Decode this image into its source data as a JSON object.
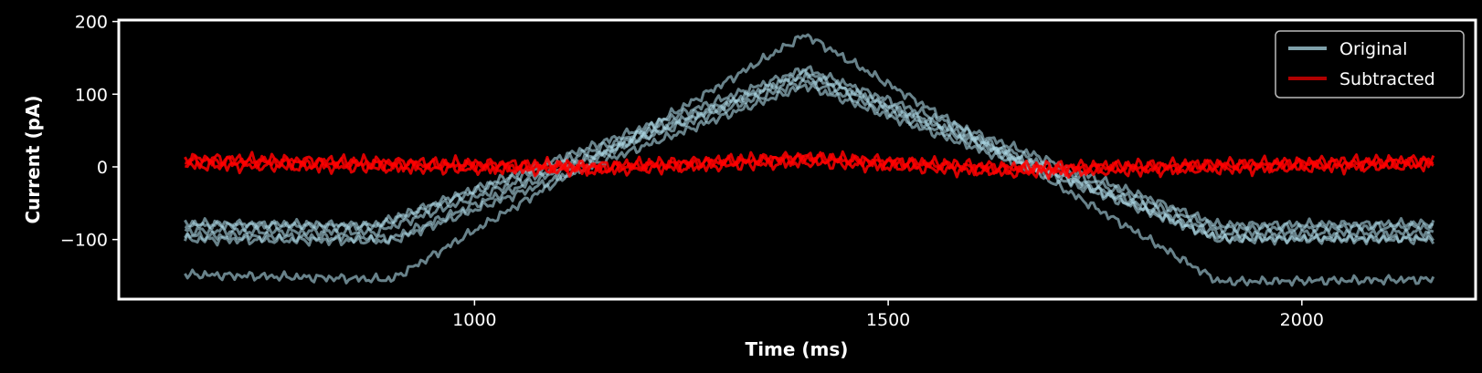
{
  "chart_data": {
    "type": "line",
    "xlabel": "Time (ms)",
    "ylabel": "Current (pA)",
    "xlim": [
      570,
      2210
    ],
    "ylim": [
      -182,
      202
    ],
    "xticks": [
      {
        "value": 1000,
        "label": "1000"
      },
      {
        "value": 1500,
        "label": "1500"
      },
      {
        "value": 2000,
        "label": "2000"
      }
    ],
    "yticks": [
      {
        "value": 200,
        "label": "200"
      },
      {
        "value": 100,
        "label": "100"
      },
      {
        "value": 0,
        "label": "0"
      },
      {
        "value": -100,
        "label": "−100"
      }
    ],
    "grid": false,
    "legend": {
      "position": "top-right",
      "entries": [
        {
          "label": "Original",
          "color": "#7fa0aa"
        },
        {
          "label": "Subtracted",
          "color": "#b00000"
        }
      ]
    },
    "series": [
      {
        "group": "Original",
        "color": "#add8e6",
        "points": [
          [
            650,
            -148
          ],
          [
            900,
            -155
          ],
          [
            1400,
            182
          ],
          [
            1900,
            -158
          ],
          [
            2160,
            -155
          ]
        ]
      },
      {
        "group": "Original",
        "color": "#add8e6",
        "points": [
          [
            650,
            -95
          ],
          [
            900,
            -98
          ],
          [
            1400,
            130
          ],
          [
            1900,
            -100
          ],
          [
            2160,
            -98
          ]
        ]
      },
      {
        "group": "Original",
        "color": "#add8e6",
        "points": [
          [
            650,
            -80
          ],
          [
            880,
            -82
          ],
          [
            1400,
            125
          ],
          [
            1900,
            -85
          ],
          [
            2160,
            -82
          ]
        ]
      },
      {
        "group": "Original",
        "color": "#add8e6",
        "points": [
          [
            650,
            -88
          ],
          [
            880,
            -90
          ],
          [
            1400,
            118
          ],
          [
            1900,
            -92
          ],
          [
            2160,
            -90
          ]
        ]
      },
      {
        "group": "Original",
        "color": "#add8e6",
        "points": [
          [
            650,
            -78
          ],
          [
            880,
            -80
          ],
          [
            1400,
            135
          ],
          [
            1900,
            -80
          ],
          [
            2160,
            -78
          ]
        ]
      },
      {
        "group": "Original",
        "color": "#add8e6",
        "points": [
          [
            650,
            -100
          ],
          [
            900,
            -102
          ],
          [
            1400,
            112
          ],
          [
            1900,
            -98
          ],
          [
            2160,
            -100
          ]
        ]
      },
      {
        "group": "Subtracted",
        "color": "#ff0000",
        "points": [
          [
            650,
            8
          ],
          [
            1150,
            -2
          ],
          [
            1400,
            12
          ],
          [
            1650,
            -4
          ],
          [
            2160,
            6
          ]
        ]
      },
      {
        "group": "Subtracted",
        "color": "#ff0000",
        "points": [
          [
            650,
            2
          ],
          [
            1150,
            -5
          ],
          [
            1400,
            6
          ],
          [
            1650,
            -8
          ],
          [
            2160,
            2
          ]
        ]
      },
      {
        "group": "Subtracted",
        "color": "#ff0000",
        "points": [
          [
            650,
            12
          ],
          [
            1150,
            2
          ],
          [
            1400,
            14
          ],
          [
            1650,
            0
          ],
          [
            2160,
            10
          ]
        ]
      }
    ]
  }
}
